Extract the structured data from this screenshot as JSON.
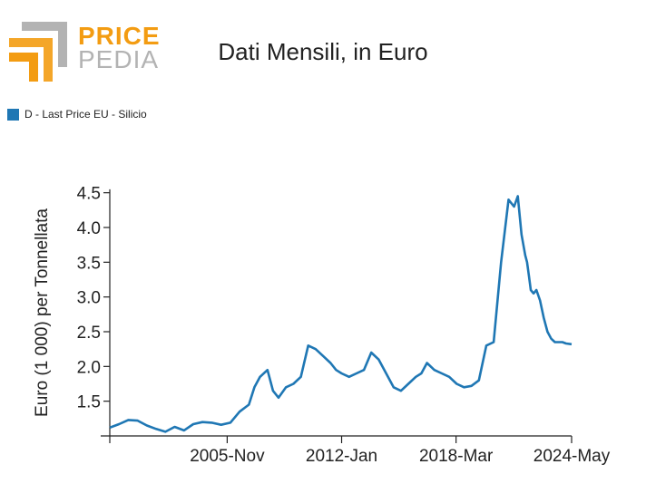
{
  "logo": {
    "line1": "PRICE",
    "line2": "PEDIA"
  },
  "chart_data": {
    "type": "line",
    "title": "Dati Mensili, in Euro",
    "ylabel": "Euro (1 000) per Tonnellata",
    "xlabel": "",
    "ylim": [
      1.0,
      4.6
    ],
    "yticks": [
      1.5,
      2.0,
      2.5,
      3.0,
      3.5,
      4.0,
      4.5
    ],
    "ytick_labels": [
      "1.5",
      "2.0",
      "2.5",
      "3.0",
      "3.5",
      "4.0",
      "4.5"
    ],
    "xlim": [
      1999.5,
      2024.4
    ],
    "xticks": [
      1999.5,
      2005.83,
      2012.0,
      2018.17,
      2024.4
    ],
    "xtick_labels": [
      "",
      "2005-Nov",
      "2012-Jan",
      "2018-Mar",
      "2024-May"
    ],
    "legend_position": "top-left",
    "color": "#1f77b4",
    "series": [
      {
        "name": "D - Last Price EU - Silicio",
        "x": [
          1999.5,
          2000.0,
          2000.5,
          2001.0,
          2001.5,
          2002.0,
          2002.5,
          2003.0,
          2003.5,
          2004.0,
          2004.5,
          2005.0,
          2005.5,
          2006.0,
          2006.5,
          2007.0,
          2007.3,
          2007.6,
          2008.0,
          2008.3,
          2008.6,
          2009.0,
          2009.4,
          2009.8,
          2010.2,
          2010.6,
          2011.0,
          2011.4,
          2011.7,
          2012.0,
          2012.4,
          2012.8,
          2013.2,
          2013.6,
          2014.0,
          2014.4,
          2014.8,
          2015.2,
          2015.6,
          2016.0,
          2016.3,
          2016.6,
          2017.0,
          2017.4,
          2017.8,
          2018.2,
          2018.6,
          2019.0,
          2019.4,
          2019.8,
          2020.2,
          2020.6,
          2021.0,
          2021.3,
          2021.5,
          2021.7,
          2021.9,
          2022.0,
          2022.1,
          2022.2,
          2022.35,
          2022.5,
          2022.7,
          2022.9,
          2023.1,
          2023.3,
          2023.5,
          2023.7,
          2023.9,
          2024.1,
          2024.4
        ],
        "values": [
          1.12,
          1.17,
          1.23,
          1.22,
          1.15,
          1.1,
          1.06,
          1.13,
          1.08,
          1.17,
          1.2,
          1.19,
          1.16,
          1.19,
          1.35,
          1.45,
          1.7,
          1.85,
          1.95,
          1.65,
          1.55,
          1.7,
          1.75,
          1.85,
          2.3,
          2.25,
          2.15,
          2.05,
          1.95,
          1.9,
          1.85,
          1.9,
          1.95,
          2.2,
          2.1,
          1.9,
          1.7,
          1.65,
          1.75,
          1.85,
          1.9,
          2.05,
          1.95,
          1.9,
          1.85,
          1.75,
          1.7,
          1.72,
          1.8,
          2.3,
          2.35,
          3.5,
          4.4,
          4.3,
          4.45,
          3.9,
          3.6,
          3.5,
          3.3,
          3.1,
          3.05,
          3.1,
          2.95,
          2.7,
          2.5,
          2.4,
          2.35,
          2.35,
          2.35,
          2.33,
          2.32
        ]
      }
    ]
  }
}
